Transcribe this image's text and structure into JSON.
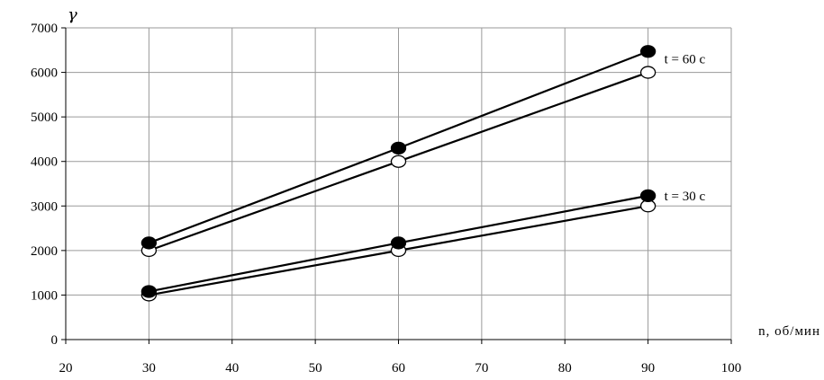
{
  "chart_data": {
    "type": "line",
    "title": "",
    "xlabel": "n, об/мин",
    "ylabel": "γ",
    "xlim": [
      20,
      100
    ],
    "ylim": [
      0,
      7000
    ],
    "xticks": [
      20,
      30,
      40,
      50,
      60,
      70,
      80,
      90,
      100
    ],
    "yticks": [
      0,
      1000,
      2000,
      3000,
      4000,
      5000,
      6000,
      7000
    ],
    "grid": true,
    "x": [
      30,
      60,
      90
    ],
    "series": [
      {
        "marker": "filled-circle",
        "values": [
          2170,
          4300,
          6470
        ]
      },
      {
        "marker": "open-circle",
        "values": [
          2000,
          4000,
          6000
        ]
      },
      {
        "marker": "filled-circle",
        "values": [
          1080,
          2170,
          3230
        ]
      },
      {
        "marker": "open-circle",
        "values": [
          1000,
          2000,
          3000
        ]
      }
    ],
    "annotations": [
      {
        "text": "t = 60 c",
        "x": 90,
        "y": 6300
      },
      {
        "text": "t = 30 c",
        "x": 90,
        "y": 3230
      }
    ]
  }
}
